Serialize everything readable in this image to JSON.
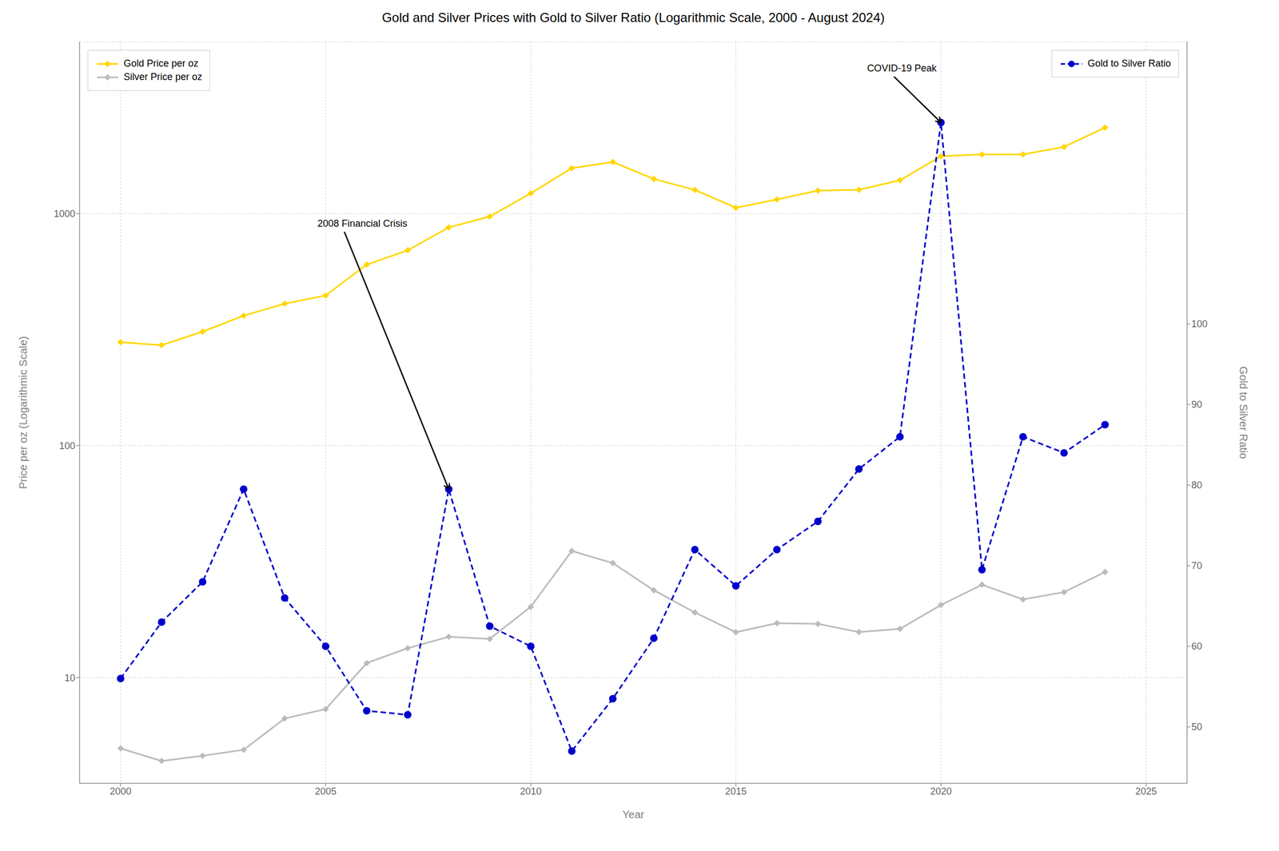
{
  "chart_data": {
    "type": "line",
    "title": "Gold and Silver Prices with Gold to Silver Ratio (Logarithmic Scale, 2000 - August 2024)",
    "x_label": "Year",
    "y_label": "Price per oz (Logarithmic Scale)",
    "y2_label": "Gold to Silver Ratio",
    "x": [
      2000,
      2001,
      2002,
      2003,
      2004,
      2005,
      2006,
      2007,
      2008,
      2009,
      2010,
      2011,
      2012,
      2013,
      2014,
      2015,
      2016,
      2017,
      2018,
      2019,
      2020,
      2021,
      2022,
      2023,
      2024
    ],
    "series": [
      {
        "name": "Gold Price per oz",
        "color": "#FFD700",
        "marker": "diamond",
        "line_style": "solid",
        "legend": "upper left",
        "values": [
          279,
          271,
          310,
          363,
          409,
          444,
          603,
          695,
          872,
          972,
          1224,
          1571,
          1669,
          1411,
          1266,
          1060,
          1151,
          1257,
          1268,
          1393,
          1769,
          1799,
          1800,
          1940,
          2350
        ]
      },
      {
        "name": "Silver Price per oz",
        "color": "#BBBBBB",
        "marker": "diamond",
        "line_style": "solid",
        "legend": "upper left",
        "values": [
          4.95,
          4.37,
          4.6,
          4.88,
          6.66,
          7.31,
          11.55,
          13.38,
          14.99,
          14.67,
          20.19,
          35.12,
          31.15,
          23.79,
          19.08,
          15.68,
          17.14,
          17.04,
          15.71,
          16.21,
          20.55,
          25.14,
          21.73,
          23.35,
          28.5
        ]
      },
      {
        "name": "Gold to Silver Ratio",
        "color": "#0000CC",
        "marker": "circle",
        "line_style": "dashed",
        "legend": "upper right",
        "axis": "y2",
        "values": [
          56.0,
          63.0,
          68.0,
          79.5,
          66.0,
          60.0,
          52.0,
          51.5,
          79.5,
          62.5,
          60.0,
          47.0,
          53.5,
          61.0,
          72.0,
          67.5,
          72.0,
          75.5,
          82.0,
          86.0,
          125.0,
          69.5,
          86.0,
          84.0,
          87.5
        ]
      }
    ],
    "xlim": [
      1999.0,
      2026.0
    ],
    "xticks": [
      2000,
      2005,
      2010,
      2015,
      2020,
      2025
    ],
    "log": "y",
    "ylim": [
      3.5,
      5500
    ],
    "yticks": [
      10,
      100,
      1000
    ],
    "y2lim": [
      43,
      135
    ],
    "y2ticks": [
      50,
      60,
      70,
      80,
      90,
      100
    ],
    "grid": true,
    "annotations": [
      {
        "text": "2008 Financial Crisis",
        "x": 2008,
        "y": 79.5,
        "axis": "y2",
        "text_x": 2004.8,
        "text_y": 900
      },
      {
        "text": "COVID-19 Peak",
        "x": 2020,
        "y": 125.0,
        "axis": "y2",
        "text_x": 2018.2,
        "text_y": 4200
      }
    ]
  }
}
